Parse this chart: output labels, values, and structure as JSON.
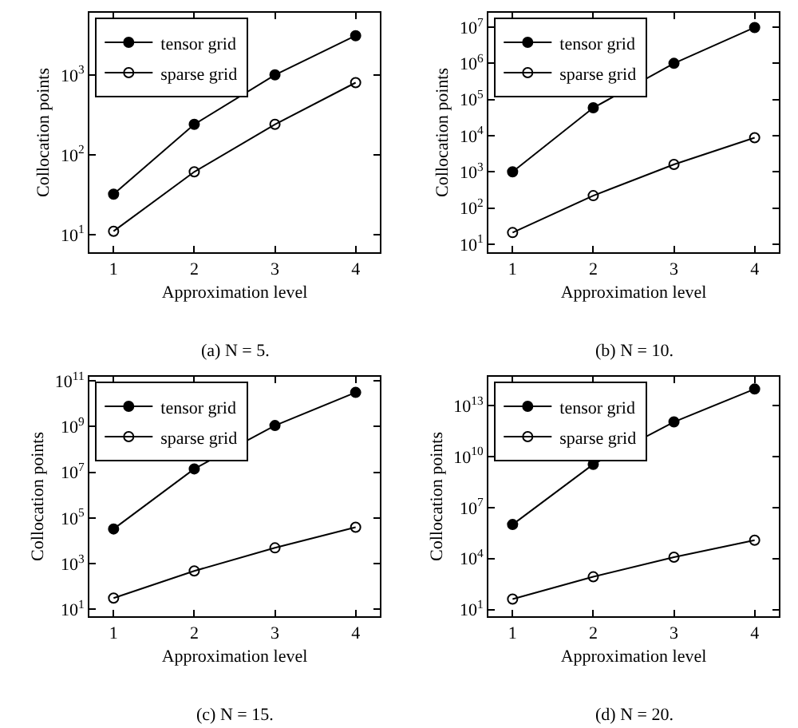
{
  "chart_data": [
    {
      "type": "line",
      "xlabel": "Approximation level",
      "ylabel": "Collocation points",
      "annotations": [
        "(a) N = 5."
      ],
      "log": "y",
      "legend": "top left",
      "grid": false,
      "marker": "circle",
      "line_style": "solid",
      "x": [
        1,
        2,
        3,
        4
      ],
      "xlim": [
        0.7,
        4.3
      ],
      "xticks": [
        1,
        2,
        3,
        4
      ],
      "ylim": [
        6,
        6000
      ],
      "yticks": [
        {
          "value": 10,
          "label": "10$^{1}$"
        },
        {
          "value": 100,
          "label": "10$^{2}$"
        },
        {
          "value": 1000,
          "label": "10$^{3}$"
        }
      ],
      "series": [
        {
          "name": "tensor grid",
          "color": "#000000",
          "values": [
            32,
            240,
            1000,
            3100
          ]
        },
        {
          "name": "sparse grid",
          "color": "#000000",
          "marker": "circle-open",
          "values": [
            11,
            61,
            240,
            800
          ]
        }
      ]
    },
    {
      "type": "line",
      "xlabel": "Approximation level",
      "ylabel": "Collocation points",
      "annotations": [
        "(b) N = 10."
      ],
      "log": "y",
      "legend": "top left",
      "grid": false,
      "marker": "circle",
      "line_style": "solid",
      "x": [
        1,
        2,
        3,
        4
      ],
      "xlim": [
        0.7,
        4.3
      ],
      "xticks": [
        1,
        2,
        3,
        4
      ],
      "ylim": [
        6,
        25000000.0
      ],
      "yticks": [
        {
          "value": 10,
          "label": "10$^{1}$"
        },
        {
          "value": 100,
          "label": "10$^{2}$"
        },
        {
          "value": 1000,
          "label": "10$^{3}$"
        },
        {
          "value": 10000,
          "label": "10$^{4}$"
        },
        {
          "value": 100000,
          "label": "10$^{5}$"
        },
        {
          "value": 1000000,
          "label": "10$^{6}$"
        },
        {
          "value": 10000000,
          "label": "10$^{7}$"
        }
      ],
      "series": [
        {
          "name": "tensor grid",
          "color": "#000000",
          "values": [
            1000,
            59000,
            1000000,
            9800000
          ]
        },
        {
          "name": "sparse grid",
          "color": "#000000",
          "marker": "circle-open",
          "values": [
            21,
            220,
            1600,
            8800
          ]
        }
      ]
    },
    {
      "type": "line",
      "xlabel": "Approximation level",
      "ylabel": "Collocation points",
      "annotations": [
        "(c) N = 15."
      ],
      "log": "y",
      "legend": "top left",
      "grid": false,
      "marker": "circle",
      "line_style": "solid",
      "x": [
        1,
        2,
        3,
        4
      ],
      "xlim": [
        0.7,
        4.3
      ],
      "xticks": [
        1,
        2,
        3,
        4
      ],
      "ylim": [
        5,
        150000000000.0
      ],
      "yticks": [
        {
          "value": 10,
          "label": "10$^{1}$"
        },
        {
          "value": 1000,
          "label": "10$^{3}$"
        },
        {
          "value": 100000,
          "label": "10$^{5}$"
        },
        {
          "value": 10000000,
          "label": "10$^{7}$"
        },
        {
          "value": 1000000000,
          "label": "10$^{9}$"
        },
        {
          "value": 100000000000,
          "label": "10$^{11}$"
        }
      ],
      "series": [
        {
          "name": "tensor grid",
          "color": "#000000",
          "values": [
            33000,
            14000000,
            1100000000,
            31000000000
          ]
        },
        {
          "name": "sparse grid",
          "color": "#000000",
          "marker": "circle-open",
          "values": [
            31,
            480,
            4900,
            39000
          ]
        }
      ]
    },
    {
      "type": "line",
      "xlabel": "Approximation level",
      "ylabel": "Collocation points",
      "annotations": [
        "(d) N = 20."
      ],
      "log": "y",
      "legend": "top left",
      "grid": false,
      "marker": "circle",
      "line_style": "solid",
      "x": [
        1,
        2,
        3,
        4
      ],
      "xlim": [
        0.7,
        4.3
      ],
      "xticks": [
        1,
        2,
        3,
        4
      ],
      "ylim": [
        4,
        500000000000000.0
      ],
      "yticks": [
        {
          "value": 10,
          "label": "10$^{1}$"
        },
        {
          "value": 10000,
          "label": "10$^{4}$"
        },
        {
          "value": 10000000,
          "label": "10$^{7}$"
        },
        {
          "value": 10000000000,
          "label": "10$^{10}$"
        },
        {
          "value": 10000000000000,
          "label": "10$^{13}$"
        }
      ],
      "series": [
        {
          "name": "tensor grid",
          "color": "#000000",
          "values": [
            1000000,
            3500000000,
            1100000000000,
            95000000000000
          ]
        },
        {
          "name": "sparse grid",
          "color": "#000000",
          "marker": "circle-open",
          "values": [
            41,
            840,
            12000,
            120000
          ]
        }
      ]
    }
  ]
}
